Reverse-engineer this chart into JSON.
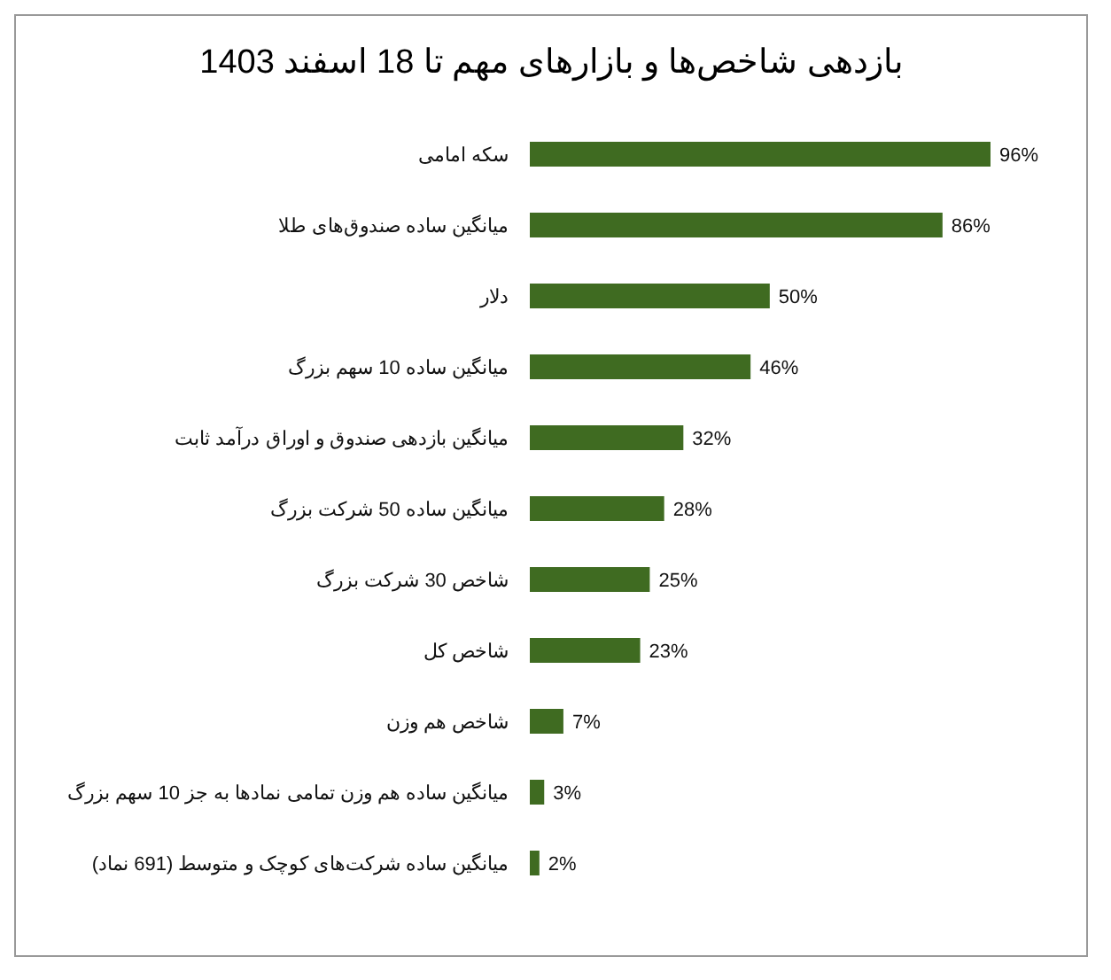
{
  "chart_data": {
    "type": "bar",
    "orientation": "horizontal",
    "title": "بازدهی شاخص‌ها و بازارهای مهم تا 18 اسفند 1403",
    "categories": [
      "سکه امامی",
      "میانگین ساده صندوق‌های طلا",
      "دلار",
      "میانگین ساده 10 سهم بزرگ",
      "میانگین بازدهی صندوق و اوراق درآمد ثابت",
      "میانگین ساده 50 شرکت بزرگ",
      "شاخص 30 شرکت بزرگ",
      "شاخص کل",
      "شاخص هم وزن",
      "میانگین ساده هم وزن تمامی نمادها به جز 10 سهم بزرگ",
      "میانگین ساده شرکت‌های کوچک و متوسط (691 نماد)"
    ],
    "values": [
      96,
      86,
      50,
      46,
      32,
      28,
      25,
      23,
      7,
      3,
      2
    ],
    "value_labels": [
      "96%",
      "86%",
      "50%",
      "46%",
      "32%",
      "28%",
      "25%",
      "23%",
      "7%",
      "3%",
      "2%"
    ],
    "color": "#3f6b21",
    "grid": false,
    "legend": false
  }
}
